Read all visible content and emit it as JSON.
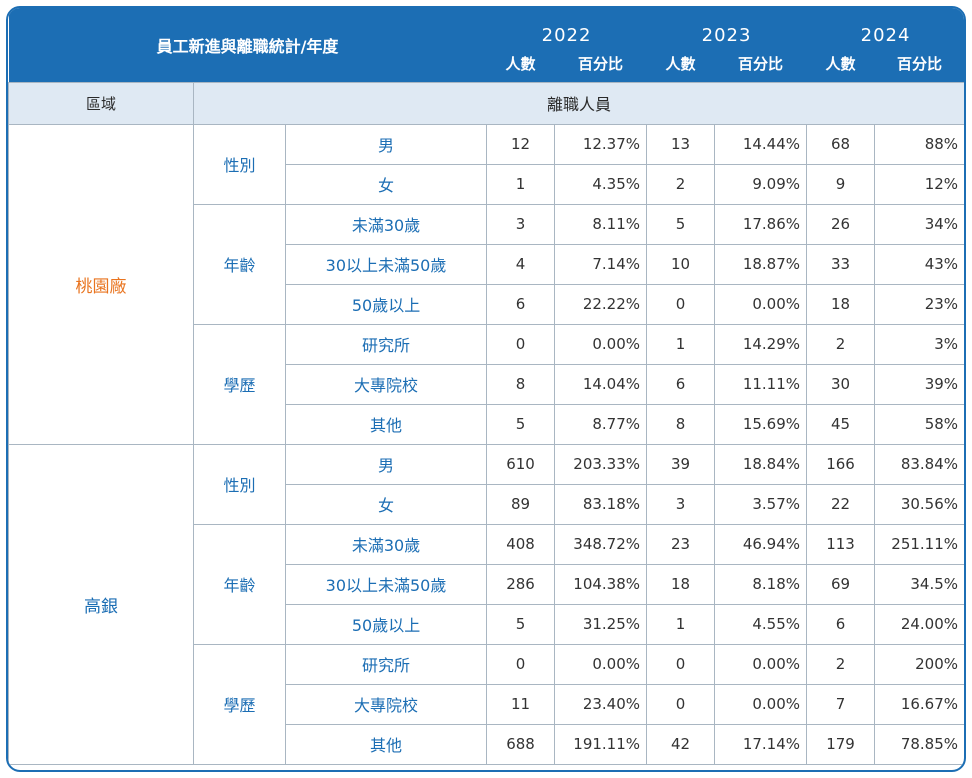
{
  "header": {
    "title": "員工新進與離職統計/年度",
    "years": [
      "2022",
      "2023",
      "2024"
    ],
    "count_label": "人數",
    "pct_label": "百分比"
  },
  "band": {
    "region_label": "區域",
    "label": "離職人員"
  },
  "sections": [
    {
      "region": "桃園廠",
      "groups": [
        {
          "label": "性別",
          "rows": [
            {
              "label": "男",
              "values": [
                "12",
                "12.37%",
                "13",
                "14.44%",
                "68",
                "88%"
              ]
            },
            {
              "label": "女",
              "values": [
                "1",
                "4.35%",
                "2",
                "9.09%",
                "9",
                "12%"
              ]
            }
          ]
        },
        {
          "label": "年齡",
          "rows": [
            {
              "label": "未滿30歲",
              "values": [
                "3",
                "8.11%",
                "5",
                "17.86%",
                "26",
                "34%"
              ]
            },
            {
              "label": "30以上未滿50歲",
              "values": [
                "4",
                "7.14%",
                "10",
                "18.87%",
                "33",
                "43%"
              ]
            },
            {
              "label": "50歲以上",
              "values": [
                "6",
                "22.22%",
                "0",
                "0.00%",
                "18",
                "23%"
              ]
            }
          ]
        },
        {
          "label": "學歷",
          "rows": [
            {
              "label": "研究所",
              "values": [
                "0",
                "0.00%",
                "1",
                "14.29%",
                "2",
                "3%"
              ]
            },
            {
              "label": "大專院校",
              "values": [
                "8",
                "14.04%",
                "6",
                "11.11%",
                "30",
                "39%"
              ]
            },
            {
              "label": "其他",
              "values": [
                "5",
                "8.77%",
                "8",
                "15.69%",
                "45",
                "58%"
              ]
            }
          ]
        }
      ]
    },
    {
      "region": "高銀",
      "groups": [
        {
          "label": "性別",
          "rows": [
            {
              "label": "男",
              "values": [
                "610",
                "203.33%",
                "39",
                "18.84%",
                "166",
                "83.84%"
              ]
            },
            {
              "label": "女",
              "values": [
                "89",
                "83.18%",
                "3",
                "3.57%",
                "22",
                "30.56%"
              ]
            }
          ]
        },
        {
          "label": "年齡",
          "rows": [
            {
              "label": "未滿30歲",
              "values": [
                "408",
                "348.72%",
                "23",
                "46.94%",
                "113",
                "251.11%"
              ]
            },
            {
              "label": "30以上未滿50歲",
              "values": [
                "286",
                "104.38%",
                "18",
                "8.18%",
                "69",
                "34.5%"
              ]
            },
            {
              "label": "50歲以上",
              "values": [
                "5",
                "31.25%",
                "1",
                "4.55%",
                "6",
                "24.00%"
              ]
            }
          ]
        },
        {
          "label": "學歷",
          "rows": [
            {
              "label": "研究所",
              "values": [
                "0",
                "0.00%",
                "0",
                "0.00%",
                "2",
                "200%"
              ]
            },
            {
              "label": "大專院校",
              "values": [
                "11",
                "23.40%",
                "0",
                "0.00%",
                "7",
                "16.67%"
              ]
            },
            {
              "label": "其他",
              "values": [
                "688",
                "191.11%",
                "42",
                "17.14%",
                "179",
                "78.85%"
              ]
            }
          ]
        }
      ]
    }
  ]
}
